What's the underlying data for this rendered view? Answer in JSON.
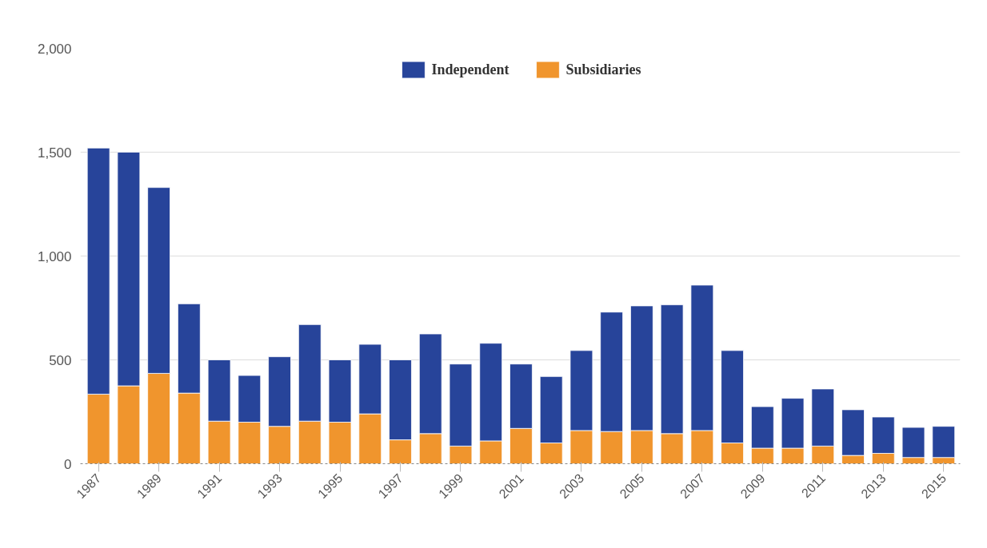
{
  "chart_data": {
    "type": "bar",
    "stacked": true,
    "categories": [
      "1987",
      null,
      "1989",
      null,
      "1991",
      null,
      "1993",
      null,
      "1995",
      null,
      "1997",
      null,
      "1999",
      null,
      "2001",
      null,
      "2003",
      null,
      "2005",
      null,
      "2007",
      null,
      "2009",
      null,
      "2011",
      null,
      "2013",
      null,
      "2015"
    ],
    "series": [
      {
        "name": "Subsidiaries",
        "color": "#f0952d",
        "values": [
          335,
          375,
          435,
          340,
          205,
          200,
          180,
          205,
          200,
          240,
          115,
          145,
          85,
          110,
          170,
          100,
          160,
          155,
          160,
          145,
          160,
          100,
          75,
          75,
          85,
          40,
          50,
          30,
          30
        ]
      },
      {
        "name": "Independent",
        "color": "#27449a",
        "values": [
          1185,
          1125,
          895,
          430,
          295,
          225,
          335,
          465,
          300,
          335,
          385,
          480,
          395,
          470,
          310,
          320,
          385,
          575,
          600,
          620,
          700,
          445,
          200,
          240,
          275,
          220,
          175,
          145,
          150
        ]
      }
    ],
    "ylim": [
      0,
      2000
    ],
    "yticks": [
      0,
      500,
      {
        "value": 1000,
        "label": "1,000"
      },
      {
        "value": 1500,
        "label": "1,500"
      },
      {
        "value": 2000,
        "label": "2,000"
      }
    ],
    "grid": "y",
    "legend": "top"
  }
}
